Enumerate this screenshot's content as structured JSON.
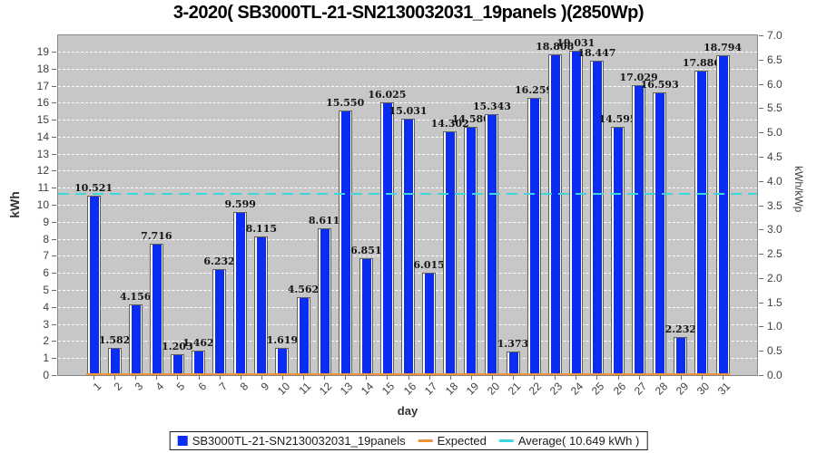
{
  "title": "3-2020( SB3000TL-21-SN2130032031_19panels )(2850Wp)",
  "chart_data": {
    "type": "bar",
    "title": "3-2020( SB3000TL-21-SN2130032031_19panels )(2850Wp)",
    "xlabel": "day",
    "ylabel_left": "kWh",
    "ylabel_right": "kWh/kWp",
    "grid": "horizontal-dashed-white",
    "plot_background": "#c7c7c7",
    "legend_position": "bottom",
    "categories": [
      1,
      2,
      3,
      4,
      5,
      6,
      7,
      8,
      9,
      10,
      11,
      12,
      13,
      14,
      15,
      16,
      17,
      18,
      19,
      20,
      21,
      22,
      23,
      24,
      25,
      26,
      27,
      28,
      29,
      30,
      31
    ],
    "series": [
      {
        "name": "SB3000TL-21-SN2130032031_19panels",
        "color": "#0b2df2",
        "values": [
          10.521,
          1.582,
          4.156,
          7.716,
          1.203,
          1.462,
          6.232,
          9.599,
          8.115,
          1.619,
          4.562,
          8.611,
          15.55,
          6.851,
          16.025,
          15.031,
          6.015,
          14.302,
          14.58,
          15.343,
          1.373,
          16.259,
          18.808,
          19.031,
          18.447,
          14.595,
          17.029,
          16.593,
          2.232,
          17.886,
          18.794
        ],
        "labels": [
          "10.521",
          "1.582",
          "4.156",
          "7.716",
          "1.203",
          "1.462",
          "6.232",
          "9.599",
          "8.115",
          "1.619",
          "4.562",
          "8.611",
          "15.550",
          "6.851",
          "16.025",
          "15.031",
          "6.015",
          "14.302",
          "14.580",
          "15.343",
          "1.373",
          "16.259",
          "18.808",
          "19.031",
          "18.447",
          "14.595",
          "17.029",
          "16.593",
          "2.232",
          "17.886",
          "18.794"
        ]
      }
    ],
    "overlay_lines": [
      {
        "name": "Expected",
        "color": "#f0923a",
        "style": "solid",
        "value": 0
      },
      {
        "name": "Average( 10.649 kWh )",
        "color": "#3cd8d8",
        "style": "dashed",
        "value": 10.649
      }
    ],
    "average_value_kwh": 10.649,
    "left_axis": {
      "label": "kWh",
      "min": 0,
      "max": 19.95,
      "tick_labels": [
        "0",
        "1",
        "2",
        "3",
        "4",
        "5",
        "6",
        "7",
        "8",
        "9",
        "10",
        "11",
        "12",
        "13",
        "14",
        "15",
        "16",
        "17",
        "18",
        "19"
      ]
    },
    "right_axis": {
      "label": "kWh/kWp",
      "min": 0.0,
      "max": 7.0,
      "tick_labels": [
        "0.0",
        "0.5",
        "1.0",
        "1.5",
        "2.0",
        "2.5",
        "3.0",
        "3.5",
        "4.0",
        "4.5",
        "5.0",
        "5.5",
        "6.0",
        "6.5",
        "7.0"
      ]
    }
  },
  "axes": {
    "xlabel": "day",
    "ylabel_left": "kWh",
    "ylabel_right": "kWh/kWp"
  },
  "legend": {
    "items": [
      {
        "label": "SB3000TL-21-SN2130032031_19panels",
        "swatch": "square",
        "color": "#0b2df2"
      },
      {
        "label": "Expected",
        "swatch": "line",
        "color": "#f0923a"
      },
      {
        "label": "Average( 10.649 kWh )",
        "swatch": "line",
        "color": "#3cd8d8"
      }
    ]
  },
  "colors": {
    "bar": "#0b2df2",
    "bar_highlight": "#ffffff",
    "expected_line": "#f0923a",
    "average_line": "#3cd8d8",
    "plot_background": "#c7c7c7",
    "gridline": "#ffffff"
  }
}
